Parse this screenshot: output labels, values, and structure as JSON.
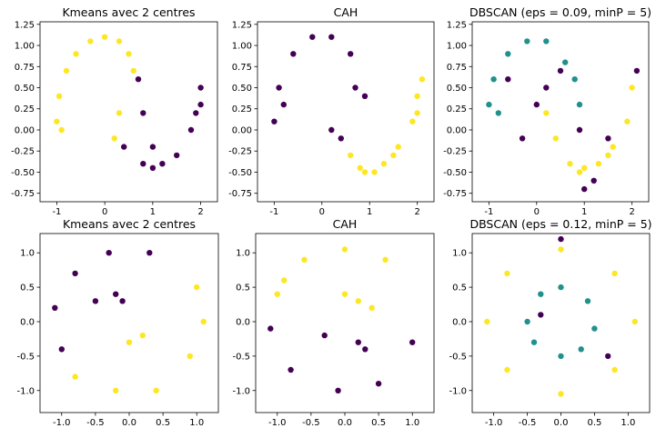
{
  "palette": {
    "purple": "#440154",
    "teal": "#21918c",
    "yellow": "#fde725"
  },
  "chart_data": [
    {
      "type": "scatter",
      "dataset": "moons",
      "method": "kmeans",
      "title": "Kmeans avec 2 centres",
      "xlabel": "",
      "ylabel": "",
      "xlim": [
        -1.35,
        2.35
      ],
      "ylim": [
        -0.85,
        1.28
      ],
      "xticks": [
        -1,
        0,
        1,
        2
      ],
      "yticks": [
        -0.75,
        -0.5,
        -0.25,
        0.0,
        0.25,
        0.5,
        0.75,
        1.0,
        1.25
      ],
      "series": [
        {
          "color": "yellow",
          "points": [
            [
              -1.0,
              0.1
            ],
            [
              -0.95,
              0.4
            ],
            [
              -0.8,
              0.7
            ],
            [
              -0.6,
              0.9
            ],
            [
              -0.3,
              1.05
            ],
            [
              0.0,
              1.1
            ],
            [
              0.3,
              1.05
            ],
            [
              0.5,
              0.9
            ],
            [
              0.6,
              0.7
            ],
            [
              0.3,
              0.2
            ],
            [
              0.2,
              -0.1
            ],
            [
              -0.9,
              0.0
            ]
          ]
        },
        {
          "color": "purple",
          "points": [
            [
              0.7,
              0.6
            ],
            [
              0.8,
              0.2
            ],
            [
              1.0,
              -0.2
            ],
            [
              1.2,
              -0.4
            ],
            [
              1.5,
              -0.3
            ],
            [
              1.8,
              0.0
            ],
            [
              2.0,
              0.3
            ],
            [
              2.0,
              0.5
            ],
            [
              0.4,
              -0.2
            ],
            [
              1.0,
              -0.45
            ],
            [
              0.8,
              -0.4
            ],
            [
              1.9,
              0.2
            ]
          ]
        }
      ]
    },
    {
      "type": "scatter",
      "dataset": "moons",
      "method": "cah",
      "title": "CAH",
      "xlabel": "",
      "ylabel": "",
      "xlim": [
        -1.35,
        2.35
      ],
      "ylim": [
        -0.85,
        1.28
      ],
      "xticks": [
        -1,
        0,
        1,
        2
      ],
      "yticks": [
        -0.75,
        -0.5,
        -0.25,
        0.0,
        0.25,
        0.5,
        0.75,
        1.0,
        1.25
      ],
      "series": [
        {
          "color": "purple",
          "points": [
            [
              -1.0,
              0.1
            ],
            [
              -0.9,
              0.5
            ],
            [
              -0.6,
              0.9
            ],
            [
              -0.2,
              1.1
            ],
            [
              0.2,
              1.1
            ],
            [
              0.6,
              0.9
            ],
            [
              0.9,
              0.4
            ],
            [
              0.7,
              0.5
            ],
            [
              0.4,
              -0.1
            ],
            [
              0.2,
              0.0
            ],
            [
              -0.8,
              0.3
            ]
          ]
        },
        {
          "color": "yellow",
          "points": [
            [
              0.6,
              -0.3
            ],
            [
              0.8,
              -0.45
            ],
            [
              1.1,
              -0.5
            ],
            [
              1.3,
              -0.4
            ],
            [
              1.6,
              -0.2
            ],
            [
              1.9,
              0.1
            ],
            [
              2.0,
              0.4
            ],
            [
              2.1,
              0.6
            ],
            [
              0.9,
              -0.5
            ],
            [
              1.5,
              -0.3
            ],
            [
              2.0,
              0.2
            ]
          ]
        }
      ]
    },
    {
      "type": "scatter",
      "dataset": "moons",
      "method": "dbscan",
      "title": "DBSCAN (eps = 0.09, minP = 5)",
      "xlabel": "",
      "ylabel": "",
      "xlim": [
        -1.35,
        2.35
      ],
      "ylim": [
        -0.85,
        1.28
      ],
      "xticks": [
        -1,
        0,
        1,
        2
      ],
      "yticks": [
        -0.75,
        -0.5,
        -0.25,
        0.0,
        0.25,
        0.5,
        0.75,
        1.0,
        1.25
      ],
      "series": [
        {
          "color": "teal",
          "points": [
            [
              -1.0,
              0.3
            ],
            [
              -0.9,
              0.6
            ],
            [
              -0.6,
              0.9
            ],
            [
              -0.2,
              1.05
            ],
            [
              0.2,
              1.05
            ],
            [
              0.6,
              0.8
            ],
            [
              0.8,
              0.6
            ],
            [
              0.9,
              0.3
            ],
            [
              -0.8,
              0.2
            ]
          ]
        },
        {
          "color": "yellow",
          "points": [
            [
              0.2,
              0.2
            ],
            [
              0.4,
              -0.1
            ],
            [
              0.7,
              -0.4
            ],
            [
              1.0,
              -0.45
            ],
            [
              1.3,
              -0.4
            ],
            [
              1.6,
              -0.2
            ],
            [
              1.9,
              0.1
            ],
            [
              2.0,
              0.5
            ],
            [
              0.9,
              -0.5
            ],
            [
              1.5,
              -0.3
            ]
          ]
        },
        {
          "color": "purple",
          "points": [
            [
              -0.3,
              -0.1
            ],
            [
              0.5,
              0.7
            ],
            [
              0.2,
              0.5
            ],
            [
              -0.6,
              0.6
            ],
            [
              0.0,
              0.3
            ],
            [
              1.0,
              -0.7
            ],
            [
              1.2,
              -0.6
            ],
            [
              1.5,
              -0.1
            ],
            [
              2.1,
              0.7
            ],
            [
              0.9,
              0.0
            ]
          ]
        }
      ]
    },
    {
      "type": "scatter",
      "dataset": "circles",
      "method": "kmeans",
      "title": "Kmeans avec 2 centres",
      "xlabel": "",
      "ylabel": "",
      "xlim": [
        -1.32,
        1.32
      ],
      "ylim": [
        -1.32,
        1.28
      ],
      "xticks": [
        -1.0,
        -0.5,
        0.0,
        0.5,
        1.0
      ],
      "yticks": [
        -1.0,
        -0.5,
        0.0,
        0.5,
        1.0
      ],
      "series": [
        {
          "color": "purple",
          "points": [
            [
              -1.1,
              0.2
            ],
            [
              -0.8,
              0.7
            ],
            [
              -0.3,
              1.0
            ],
            [
              0.3,
              1.0
            ],
            [
              -0.5,
              0.3
            ],
            [
              -0.2,
              0.4
            ],
            [
              -0.1,
              0.3
            ],
            [
              -1.0,
              -0.4
            ]
          ]
        },
        {
          "color": "yellow",
          "points": [
            [
              -0.8,
              -0.8
            ],
            [
              -0.2,
              -1.0
            ],
            [
              0.4,
              -1.0
            ],
            [
              0.9,
              -0.5
            ],
            [
              1.1,
              0.0
            ],
            [
              1.0,
              0.5
            ],
            [
              0.2,
              -0.2
            ],
            [
              0.0,
              -0.3
            ]
          ]
        }
      ]
    },
    {
      "type": "scatter",
      "dataset": "circles",
      "method": "cah",
      "title": "CAH",
      "xlabel": "",
      "ylabel": "",
      "xlim": [
        -1.32,
        1.32
      ],
      "ylim": [
        -1.32,
        1.28
      ],
      "xticks": [
        -1.0,
        -0.5,
        0.0,
        0.5,
        1.0
      ],
      "yticks": [
        -1.0,
        -0.5,
        0.0,
        0.5,
        1.0
      ],
      "series": [
        {
          "color": "yellow",
          "points": [
            [
              -1.0,
              0.4
            ],
            [
              -0.6,
              0.9
            ],
            [
              0.0,
              1.05
            ],
            [
              0.6,
              0.9
            ],
            [
              0.0,
              0.4
            ],
            [
              0.2,
              0.3
            ],
            [
              0.4,
              0.2
            ],
            [
              -0.9,
              0.6
            ]
          ]
        },
        {
          "color": "purple",
          "points": [
            [
              -1.1,
              -0.1
            ],
            [
              -0.8,
              -0.7
            ],
            [
              -0.1,
              -1.0
            ],
            [
              0.5,
              -0.9
            ],
            [
              1.0,
              -0.3
            ],
            [
              -0.3,
              -0.2
            ],
            [
              0.2,
              -0.3
            ],
            [
              0.3,
              -0.4
            ]
          ]
        }
      ]
    },
    {
      "type": "scatter",
      "dataset": "circles",
      "method": "dbscan",
      "title": "DBSCAN (eps = 0.12, minP = 5)",
      "xlabel": "",
      "ylabel": "",
      "xlim": [
        -1.32,
        1.32
      ],
      "ylim": [
        -1.32,
        1.28
      ],
      "xticks": [
        -1.0,
        -0.5,
        0.0,
        0.5,
        1.0
      ],
      "yticks": [
        -1.0,
        -0.5,
        0.0,
        0.5,
        1.0
      ],
      "series": [
        {
          "color": "yellow",
          "points": [
            [
              -1.1,
              0.0
            ],
            [
              -0.8,
              0.7
            ],
            [
              0.0,
              1.05
            ],
            [
              0.8,
              0.7
            ],
            [
              1.1,
              0.0
            ],
            [
              0.8,
              -0.7
            ],
            [
              0.0,
              -1.05
            ],
            [
              -0.8,
              -0.7
            ]
          ]
        },
        {
          "color": "teal",
          "points": [
            [
              -0.5,
              0.0
            ],
            [
              -0.3,
              0.4
            ],
            [
              0.0,
              0.5
            ],
            [
              0.4,
              0.3
            ],
            [
              0.5,
              -0.1
            ],
            [
              0.3,
              -0.4
            ],
            [
              0.0,
              -0.5
            ],
            [
              -0.4,
              -0.3
            ]
          ]
        },
        {
          "color": "purple",
          "points": [
            [
              0.0,
              1.2
            ],
            [
              -0.3,
              0.1
            ],
            [
              0.7,
              -0.5
            ]
          ]
        }
      ]
    }
  ]
}
